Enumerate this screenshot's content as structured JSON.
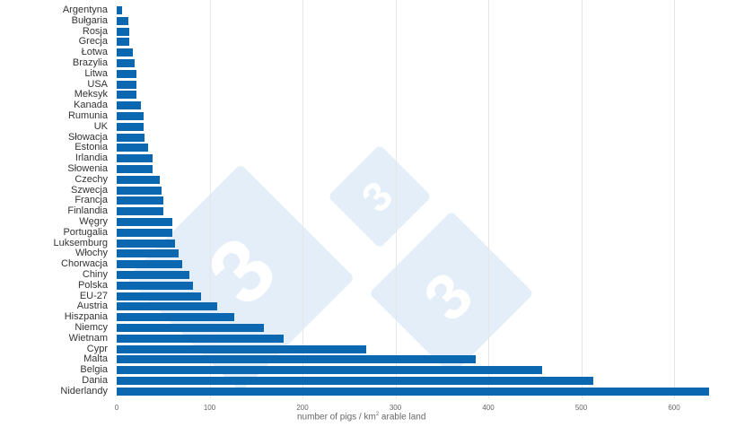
{
  "chart_data": {
    "type": "bar",
    "orientation": "horizontal",
    "title": "",
    "xlabel": "number of pigs / km² arable land",
    "xlabel_parts": {
      "pre": "number of pigs / km",
      "sup": "2",
      "post": " arable land"
    },
    "ylabel": "",
    "xlim": [
      0,
      640
    ],
    "xticks": [
      0,
      100,
      200,
      300,
      400,
      500,
      600
    ],
    "grid": "vertical",
    "legend": "none",
    "bar_color": "#0b67b0",
    "categories": [
      "Argentyna",
      "Bułgaria",
      "Rosja",
      "Grecja",
      "Łotwa",
      "Brazylia",
      "Litwa",
      "USA",
      "Meksyk",
      "Kanada",
      "Rumunia",
      "UK",
      "Słowacja",
      "Estonia",
      "Irlandia",
      "Słowenia",
      "Czechy",
      "Szwecja",
      "Francja",
      "Finlandia",
      "Węgry",
      "Portugalia",
      "Luksemburg",
      "Włochy",
      "Chorwacja",
      "Chiny",
      "Polska",
      "EU-27",
      "Austria",
      "Hiszpania",
      "Niemcy",
      "Wietnam",
      "Cypr",
      "Malta",
      "Belgia",
      "Dania",
      "Niderlandy"
    ],
    "values": [
      6,
      13,
      14,
      14,
      17,
      19,
      21,
      21,
      21,
      26,
      29,
      29,
      30,
      34,
      39,
      39,
      46,
      48,
      50,
      50,
      60,
      60,
      63,
      67,
      71,
      78,
      82,
      91,
      108,
      127,
      158,
      180,
      269,
      386,
      458,
      513,
      638
    ]
  },
  "watermark": {
    "glyph": "3"
  }
}
